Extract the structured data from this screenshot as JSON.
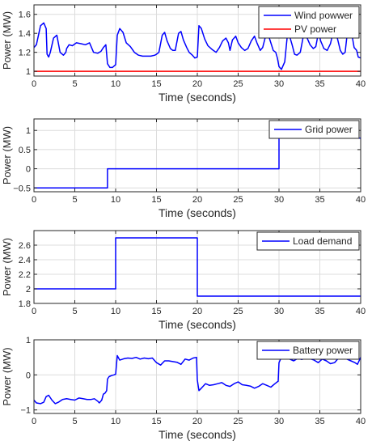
{
  "chart_data": [
    {
      "type": "line",
      "xlabel": "Time (seconds)",
      "ylabel": "Power (MW)",
      "xlim": [
        0,
        40
      ],
      "ylim": [
        0.95,
        1.7
      ],
      "xticks": [
        0,
        5,
        10,
        15,
        20,
        25,
        30,
        35,
        40
      ],
      "yticks": [
        1,
        1.2,
        1.4,
        1.6
      ],
      "grid": true,
      "legend_position": "top-right",
      "series": [
        {
          "name": "Wind powwer",
          "color": "#0000ff",
          "x": [
            0,
            0.3,
            0.8,
            1.2,
            1.5,
            1.6,
            1.8,
            2.0,
            2.4,
            2.8,
            3.2,
            3.6,
            3.9,
            4.0,
            4.3,
            4.7,
            5.2,
            5.8,
            6.3,
            6.8,
            7.3,
            7.8,
            8.2,
            8.5,
            8.8,
            9.0,
            9.3,
            9.6,
            10.0,
            10.2,
            10.5,
            10.9,
            11.3,
            11.8,
            12.3,
            12.8,
            13.3,
            13.8,
            14.3,
            14.8,
            15.0,
            15.3,
            15.7,
            16.0,
            16.3,
            16.7,
            17.0,
            17.3,
            17.7,
            18.0,
            18.3,
            18.7,
            19.0,
            19.4,
            19.7,
            20.0,
            20.2,
            20.5,
            20.9,
            21.3,
            21.8,
            22.3,
            22.7,
            23.1,
            23.5,
            23.8,
            24.0,
            24.3,
            24.7,
            25.0,
            25.4,
            25.8,
            26.2,
            26.6,
            27.0,
            27.3,
            27.7,
            28.0,
            28.3,
            28.7,
            29.0,
            29.3,
            29.6,
            29.8,
            30.0,
            30.3,
            30.7,
            31.0,
            31.3,
            31.6,
            31.9,
            32.2,
            32.6,
            33.0,
            33.4,
            33.8,
            34.2,
            34.5,
            34.7,
            34.9,
            35.1,
            35.5,
            35.9,
            36.3,
            36.6,
            36.9,
            37.2,
            37.5,
            37.8,
            38.1,
            38.4,
            38.7,
            39.0,
            39.2,
            39.5,
            39.7,
            40.0
          ],
          "y": [
            1.25,
            1.28,
            1.48,
            1.51,
            1.45,
            1.18,
            1.15,
            1.2,
            1.35,
            1.38,
            1.2,
            1.17,
            1.2,
            1.24,
            1.28,
            1.27,
            1.3,
            1.29,
            1.28,
            1.3,
            1.2,
            1.19,
            1.21,
            1.25,
            1.28,
            1.08,
            1.04,
            1.04,
            1.07,
            1.38,
            1.45,
            1.41,
            1.3,
            1.26,
            1.2,
            1.17,
            1.16,
            1.16,
            1.16,
            1.17,
            1.18,
            1.2,
            1.38,
            1.41,
            1.32,
            1.24,
            1.22,
            1.22,
            1.4,
            1.42,
            1.33,
            1.25,
            1.2,
            1.17,
            1.14,
            1.15,
            1.48,
            1.45,
            1.34,
            1.27,
            1.23,
            1.2,
            1.25,
            1.32,
            1.35,
            1.3,
            1.22,
            1.33,
            1.37,
            1.3,
            1.25,
            1.22,
            1.24,
            1.32,
            1.37,
            1.3,
            1.22,
            1.25,
            1.35,
            1.38,
            1.3,
            1.22,
            1.2,
            1.14,
            1.05,
            1.02,
            1.1,
            1.36,
            1.37,
            1.28,
            1.18,
            1.17,
            1.2,
            1.38,
            1.36,
            1.28,
            1.24,
            1.26,
            1.35,
            1.39,
            1.32,
            1.24,
            1.22,
            1.29,
            1.4,
            1.43,
            1.33,
            1.22,
            1.18,
            1.2,
            1.43,
            1.47,
            1.35,
            1.25,
            1.22,
            1.15,
            1.14
          ]
        },
        {
          "name": "PV power",
          "color": "#ff0000",
          "x": [
            0,
            40
          ],
          "y": [
            1,
            1
          ]
        }
      ]
    },
    {
      "type": "line",
      "xlabel": "Time (seconds)",
      "ylabel": "Power (MW)",
      "xlim": [
        0,
        40
      ],
      "ylim": [
        -0.6,
        1.3
      ],
      "xticks": [
        0,
        5,
        10,
        15,
        20,
        25,
        30,
        35,
        40
      ],
      "yticks": [
        -0.5,
        0,
        0.5,
        1
      ],
      "grid": true,
      "legend_position": "top-right",
      "series": [
        {
          "name": "Grid power",
          "color": "#0000ff",
          "x": [
            0,
            9,
            9,
            30,
            30,
            40
          ],
          "y": [
            -0.5,
            -0.5,
            0,
            0,
            0.8,
            0.8
          ]
        }
      ]
    },
    {
      "type": "line",
      "xlabel": "Time (seconds)",
      "ylabel": "Power (MW)",
      "xlim": [
        0,
        40
      ],
      "ylim": [
        1.8,
        2.8
      ],
      "xticks": [
        0,
        5,
        10,
        15,
        20,
        25,
        30,
        35,
        40
      ],
      "yticks": [
        1.8,
        2,
        2.2,
        2.4,
        2.6
      ],
      "grid": true,
      "legend_position": "top-right",
      "series": [
        {
          "name": "Load demand",
          "color": "#0000ff",
          "x": [
            0,
            10,
            10,
            20,
            20,
            40
          ],
          "y": [
            2,
            2,
            2.7,
            2.7,
            1.9,
            1.9
          ]
        }
      ]
    },
    {
      "type": "line",
      "xlabel": "Time (seconds)",
      "ylabel": "Power (MW)",
      "xlim": [
        0,
        40
      ],
      "ylim": [
        -1.1,
        1
      ],
      "xticks": [
        0,
        5,
        10,
        15,
        20,
        25,
        30,
        35,
        40
      ],
      "yticks": [
        -1,
        0,
        1
      ],
      "grid": true,
      "legend_position": "top-right",
      "series": [
        {
          "name": "Battery power",
          "color": "#0000ff",
          "x": [
            0,
            0.3,
            0.8,
            1.2,
            1.5,
            1.8,
            2.2,
            2.6,
            3.0,
            3.5,
            4.0,
            4.5,
            5.0,
            5.5,
            6.0,
            6.5,
            7.0,
            7.4,
            7.8,
            8.0,
            8.3,
            8.5,
            8.7,
            8.9,
            9.0,
            9.2,
            9.5,
            9.8,
            10.0,
            10.2,
            10.5,
            11.0,
            11.5,
            12.0,
            12.5,
            13.0,
            13.5,
            14.0,
            14.5,
            15.0,
            15.5,
            16.0,
            16.5,
            17.0,
            17.5,
            18.0,
            18.5,
            19.0,
            19.5,
            19.9,
            20.0,
            20.2,
            20.5,
            21.0,
            21.5,
            22.0,
            22.5,
            23.0,
            23.5,
            24.0,
            24.5,
            25.0,
            25.5,
            26.0,
            26.5,
            27.0,
            27.5,
            28.0,
            28.5,
            29.0,
            29.5,
            29.9,
            30.0,
            30.3,
            30.8,
            31.3,
            31.8,
            32.3,
            32.8,
            33.3,
            33.8,
            34.3,
            34.8,
            35.3,
            35.8,
            36.3,
            36.8,
            37.3,
            37.8,
            38.3,
            38.8,
            39.3,
            39.6,
            40.0
          ],
          "y": [
            -0.72,
            -0.8,
            -0.82,
            -0.78,
            -0.62,
            -0.58,
            -0.72,
            -0.82,
            -0.78,
            -0.7,
            -0.68,
            -0.7,
            -0.72,
            -0.66,
            -0.68,
            -0.7,
            -0.7,
            -0.68,
            -0.75,
            -0.8,
            -0.72,
            -0.55,
            -0.52,
            -0.45,
            -0.12,
            -0.05,
            -0.02,
            0.0,
            0.02,
            0.55,
            0.42,
            0.46,
            0.48,
            0.47,
            0.5,
            0.45,
            0.48,
            0.46,
            0.48,
            0.35,
            0.28,
            0.4,
            0.4,
            0.38,
            0.36,
            0.3,
            0.45,
            0.42,
            0.48,
            0.5,
            -0.15,
            -0.45,
            -0.38,
            -0.25,
            -0.3,
            -0.28,
            -0.25,
            -0.22,
            -0.3,
            -0.33,
            -0.25,
            -0.2,
            -0.28,
            -0.3,
            -0.32,
            -0.38,
            -0.33,
            -0.25,
            -0.3,
            -0.35,
            -0.25,
            -0.18,
            0.35,
            0.5,
            0.52,
            0.45,
            0.4,
            0.47,
            0.44,
            0.5,
            0.46,
            0.42,
            0.35,
            0.45,
            0.4,
            0.32,
            0.35,
            0.48,
            0.5,
            0.45,
            0.4,
            0.35,
            0.3,
            0.5
          ]
        }
      ]
    }
  ]
}
